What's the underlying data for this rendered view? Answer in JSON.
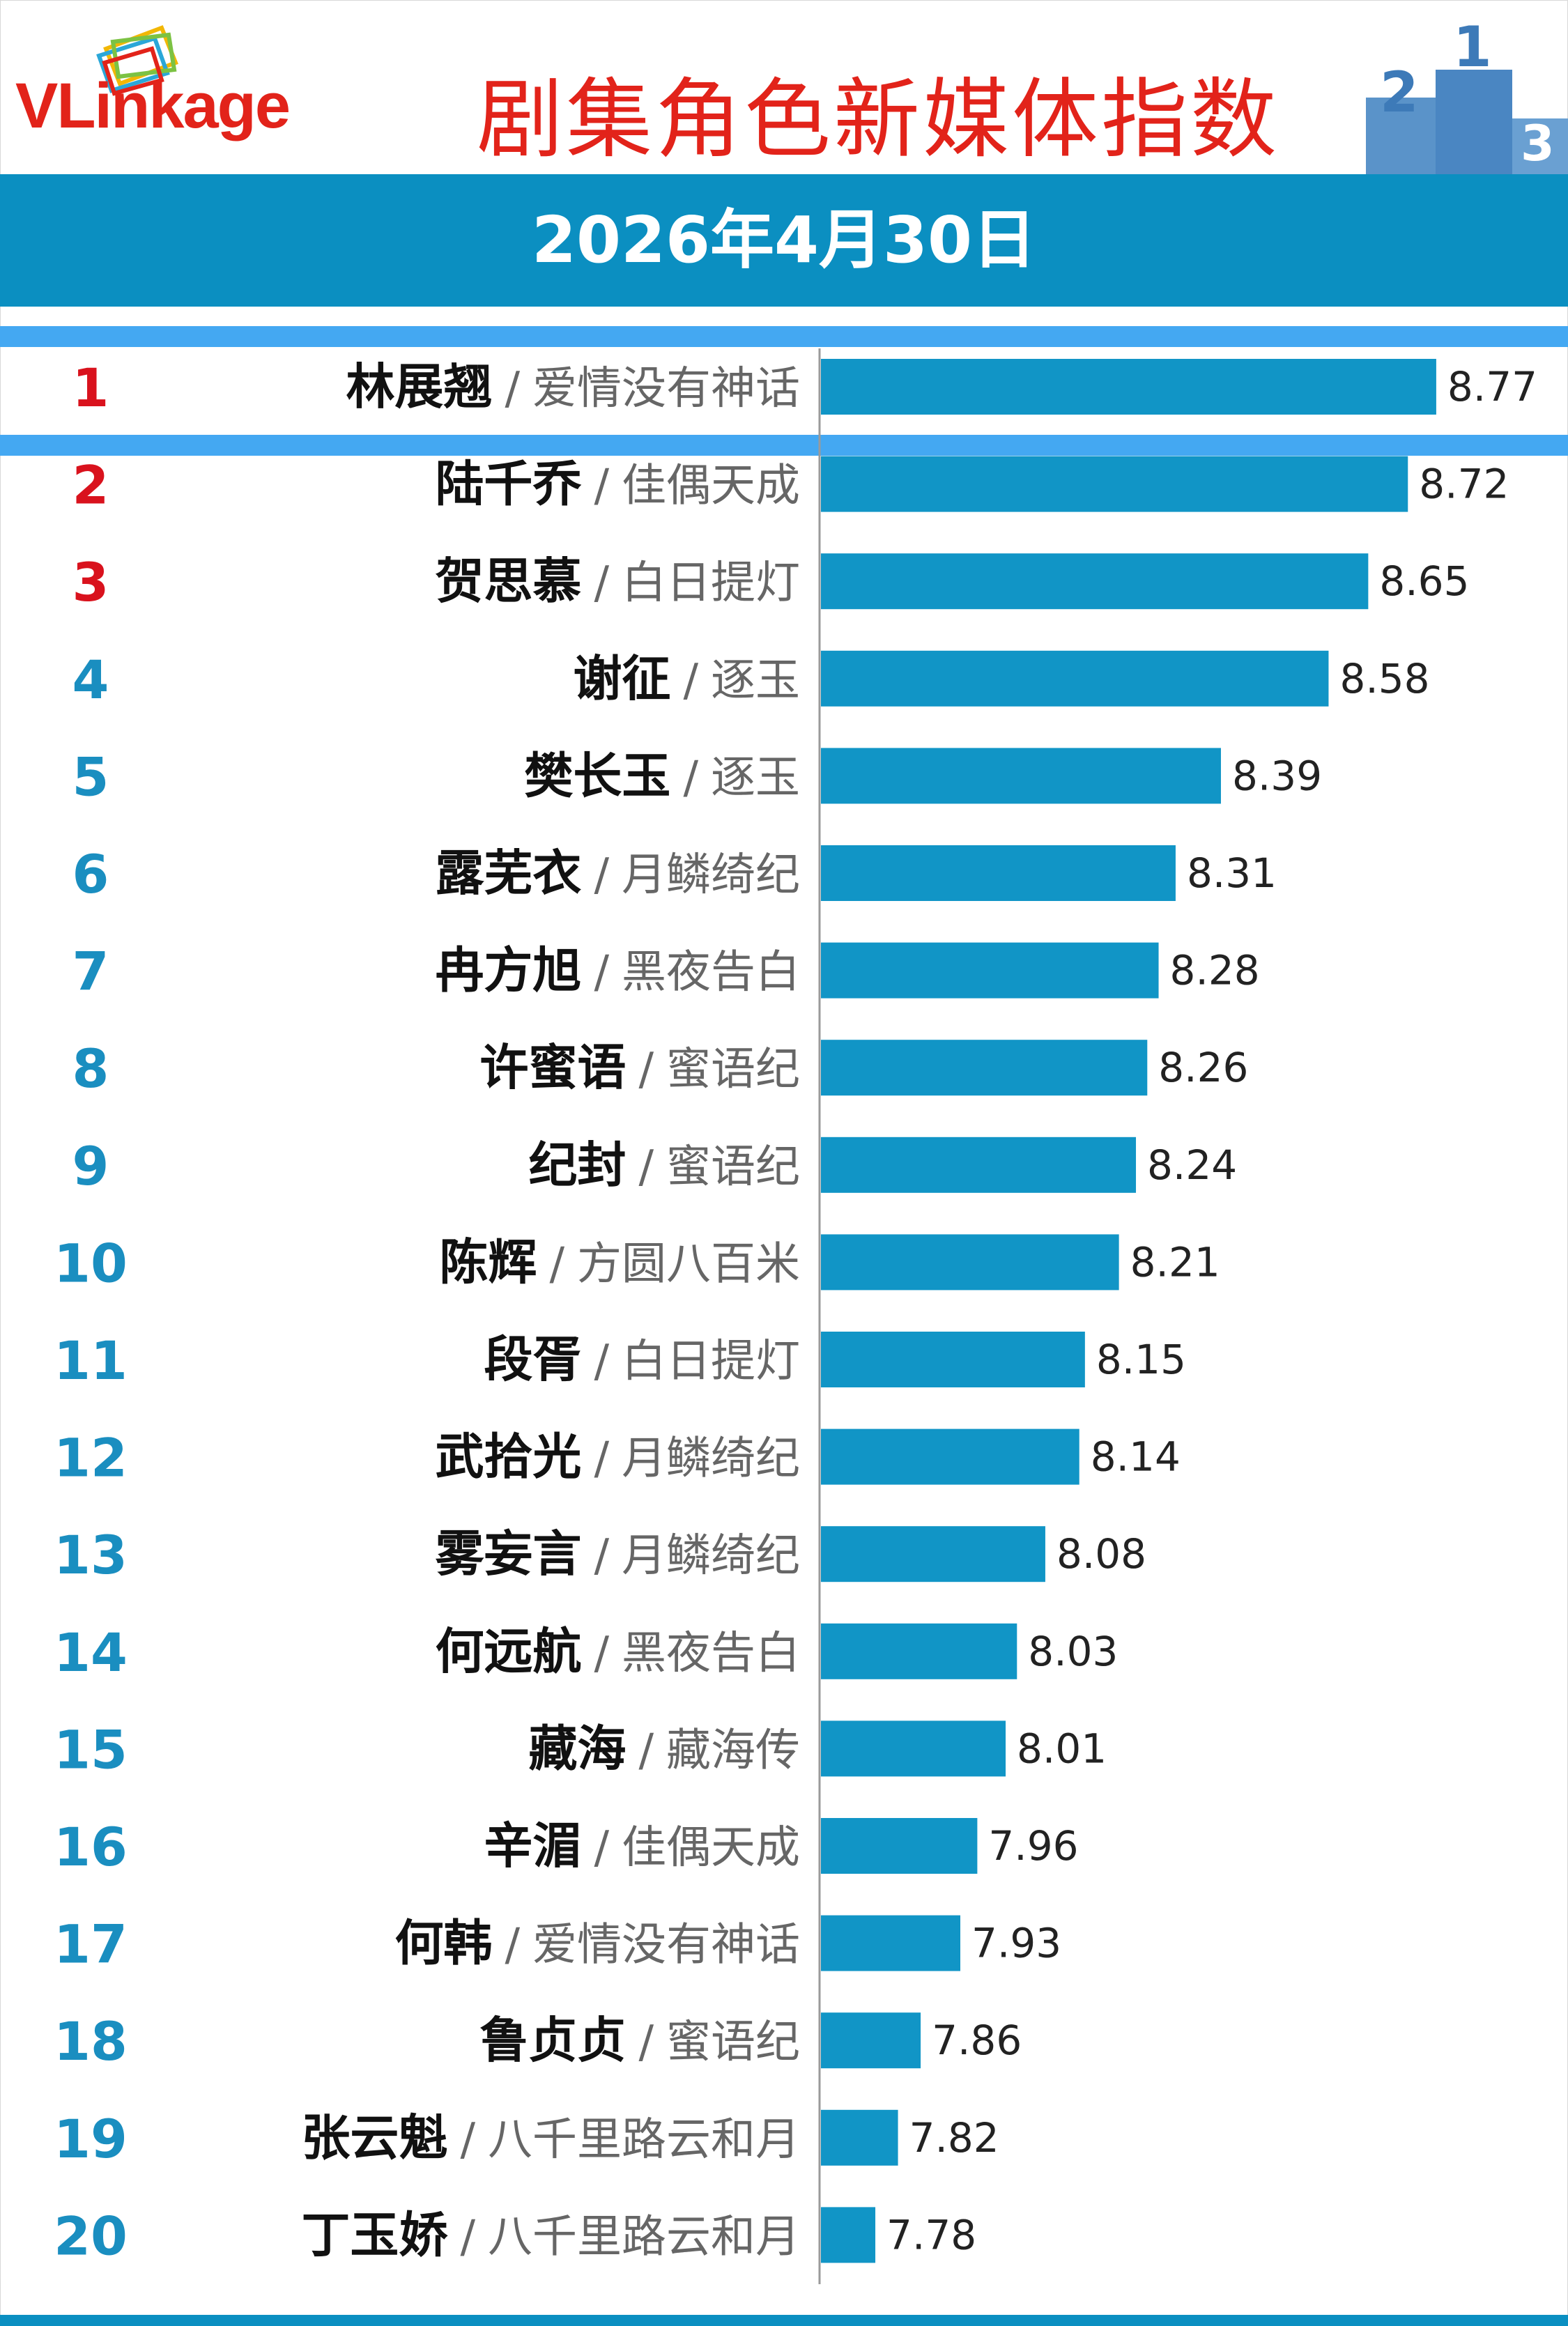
{
  "header": {
    "logo_text": "VLinkage",
    "title": "剧集角色新媒体指数",
    "date": "2026年4月30日",
    "podium_labels": [
      "2",
      "1",
      "3"
    ]
  },
  "colors": {
    "title_red": "#e2231a",
    "bar_blue": "#1195c6",
    "band_blue": "#0b8fc1",
    "highlight_blue": "#44a8f2",
    "top3_rank": "#d9121d",
    "rank_blue": "#1a8ec0"
  },
  "chart_data": {
    "type": "bar",
    "orientation": "horizontal",
    "xlim": [
      7.5,
      8.8
    ],
    "highlight_rank": 1,
    "items": [
      {
        "rank": "1",
        "name": "林展翘",
        "drama": "爱情没有神话",
        "value": 8.77,
        "label": "8.77"
      },
      {
        "rank": "2",
        "name": "陆千乔",
        "drama": "佳偶天成",
        "value": 8.72,
        "label": "8.72"
      },
      {
        "rank": "3",
        "name": "贺思慕",
        "drama": "白日提灯",
        "value": 8.65,
        "label": "8.65"
      },
      {
        "rank": "4",
        "name": "谢征",
        "drama": "逐玉",
        "value": 8.58,
        "label": "8.58"
      },
      {
        "rank": "5",
        "name": "樊长玉",
        "drama": "逐玉",
        "value": 8.39,
        "label": "8.39"
      },
      {
        "rank": "6",
        "name": "露芜衣",
        "drama": "月鳞绮纪",
        "value": 8.31,
        "label": "8.31"
      },
      {
        "rank": "7",
        "name": "冉方旭",
        "drama": "黑夜告白",
        "value": 8.28,
        "label": "8.28"
      },
      {
        "rank": "8",
        "name": "许蜜语",
        "drama": "蜜语纪",
        "value": 8.26,
        "label": "8.26"
      },
      {
        "rank": "9",
        "name": "纪封",
        "drama": "蜜语纪",
        "value": 8.24,
        "label": "8.24"
      },
      {
        "rank": "10",
        "name": "陈辉",
        "drama": "方圆八百米",
        "value": 8.21,
        "label": "8.21"
      },
      {
        "rank": "11",
        "name": "段胥",
        "drama": "白日提灯",
        "value": 8.15,
        "label": "8.15"
      },
      {
        "rank": "12",
        "name": "武拾光",
        "drama": "月鳞绮纪",
        "value": 8.14,
        "label": "8.14"
      },
      {
        "rank": "13",
        "name": "雾妄言",
        "drama": "月鳞绮纪",
        "value": 8.08,
        "label": "8.08"
      },
      {
        "rank": "14",
        "name": "何远航",
        "drama": "黑夜告白",
        "value": 8.03,
        "label": "8.03"
      },
      {
        "rank": "15",
        "name": "藏海",
        "drama": "藏海传",
        "value": 8.01,
        "label": "8.01"
      },
      {
        "rank": "16",
        "name": "辛湄",
        "drama": "佳偶天成",
        "value": 7.96,
        "label": "7.96"
      },
      {
        "rank": "17",
        "name": "何韩",
        "drama": "爱情没有神话",
        "value": 7.93,
        "label": "7.93"
      },
      {
        "rank": "18",
        "name": "鲁贞贞",
        "drama": "蜜语纪",
        "value": 7.86,
        "label": "7.86"
      },
      {
        "rank": "19",
        "name": "张云魁",
        "drama": "八千里路云和月",
        "value": 7.82,
        "label": "7.82"
      },
      {
        "rank": "20",
        "name": "丁玉娇",
        "drama": "八千里路云和月",
        "value": 7.78,
        "label": "7.78"
      }
    ]
  }
}
